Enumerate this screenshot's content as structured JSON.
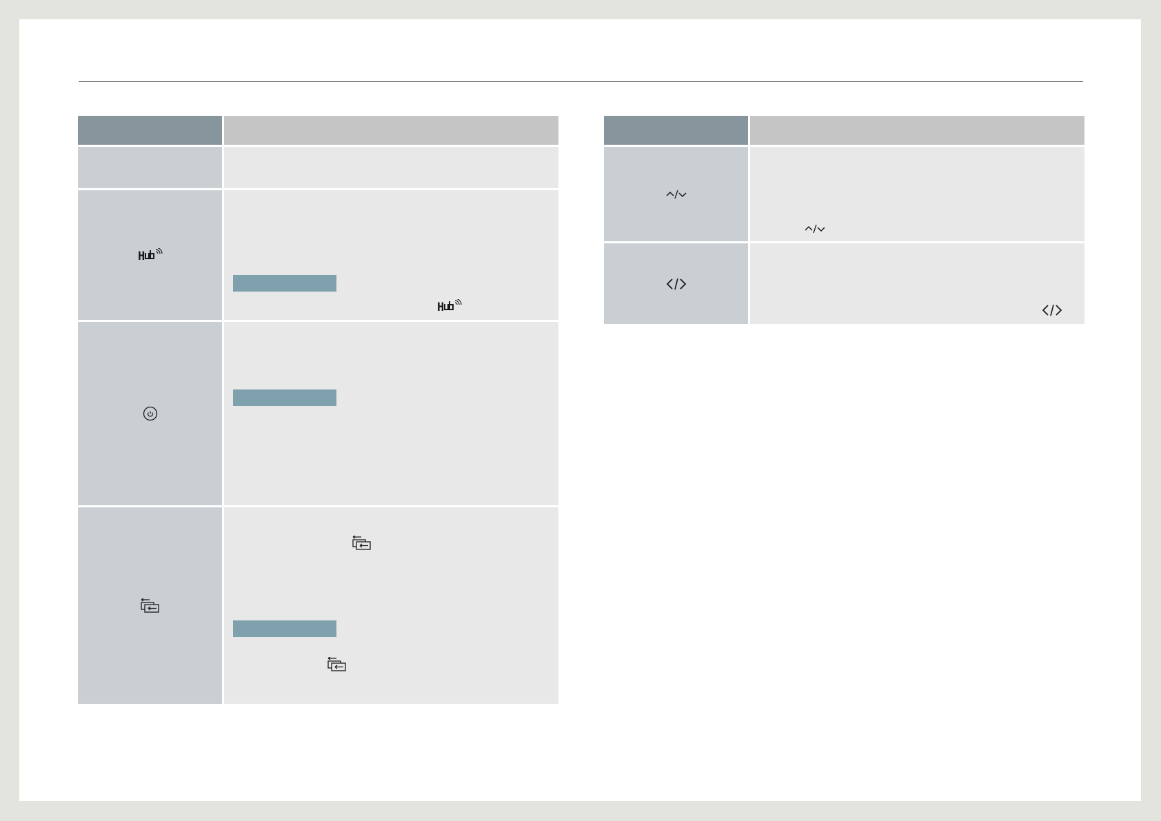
{
  "page": {
    "background": "#ffffff",
    "frame_color": "#e4e4df"
  },
  "colors": {
    "header_key": "#87969c",
    "header_value": "#c5c5c5",
    "key_cell": "#c9cfd2",
    "value_cell": "#e8e8e8",
    "tag": "#7fa1ad"
  },
  "left_table": {
    "rows": [
      {
        "key_icon": null
      },
      {
        "key_icon": "hub-icon",
        "key_icon_text": "Hub",
        "inline_icon": "hub-icon"
      },
      {
        "key_icon": "power-icon"
      },
      {
        "key_icon": "source-switch-icon",
        "inline_icons": [
          "source-switch-icon",
          "source-switch-icon"
        ]
      }
    ]
  },
  "right_table": {
    "rows": [
      {
        "key_icon": "up-down-icon",
        "inline_icon": "up-down-icon"
      },
      {
        "key_icon": "left-right-icon",
        "inline_icon": "left-right-icon"
      }
    ]
  }
}
